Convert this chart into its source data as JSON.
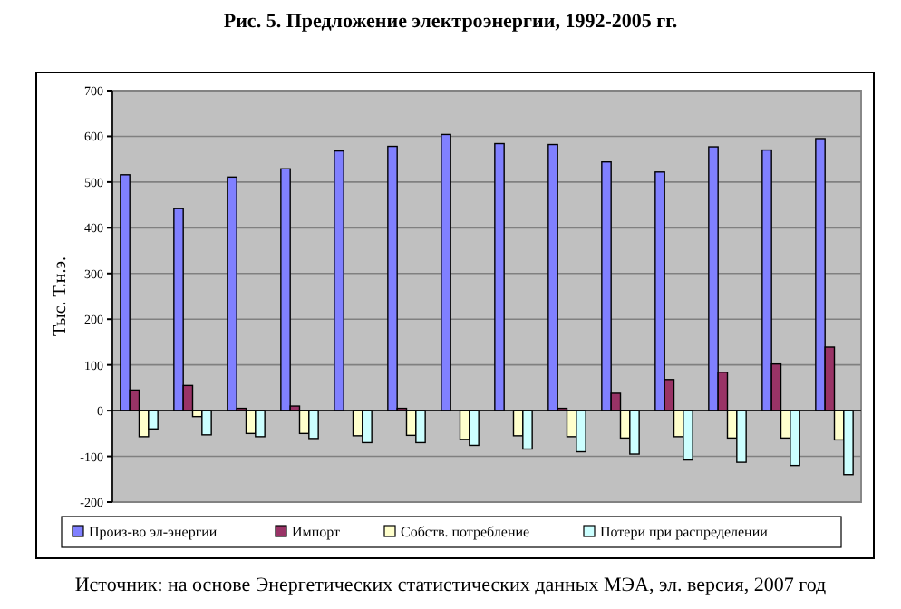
{
  "chart_data": {
    "type": "bar",
    "title": "Рис. 5.   Предложение электроэнергии, 1992-2005 гг.",
    "ylabel": "Тыс. Т.н.э.",
    "annotations": [
      "Источник: на основе Энергетических статистических данных МЭА, эл. версия, 2007 год"
    ],
    "categories": [
      null,
      null,
      null,
      null,
      null,
      null,
      null,
      null,
      null,
      null,
      null,
      null,
      null,
      null
    ],
    "series": [
      {
        "name": "Произ-во эл-энергии",
        "color": "#8080ff",
        "values": [
          516,
          442,
          511,
          529,
          568,
          578,
          604,
          584,
          582,
          544,
          522,
          577,
          570,
          595
        ]
      },
      {
        "name": "Импорт",
        "color": "#993366",
        "values": [
          45,
          55,
          5,
          10,
          0,
          5,
          0,
          0,
          5,
          38,
          68,
          84,
          102,
          139
        ]
      },
      {
        "name": "Собств. потребление",
        "color": "#ffffcc",
        "values": [
          -57,
          -13,
          -50,
          -50,
          -55,
          -54,
          -63,
          -55,
          -57,
          -60,
          -57,
          -60,
          -60,
          -64
        ]
      },
      {
        "name": "Потери при распределении",
        "color": "#ccffff",
        "values": [
          -40,
          -53,
          -57,
          -61,
          -70,
          -70,
          -76,
          -84,
          -90,
          -95,
          -108,
          -113,
          -120,
          -140
        ]
      }
    ],
    "ylim": [
      -200,
      700
    ],
    "yticks": [
      -200,
      -100,
      0,
      100,
      200,
      300,
      400,
      500,
      600,
      700
    ],
    "grid": "y",
    "legend": "bottom"
  }
}
